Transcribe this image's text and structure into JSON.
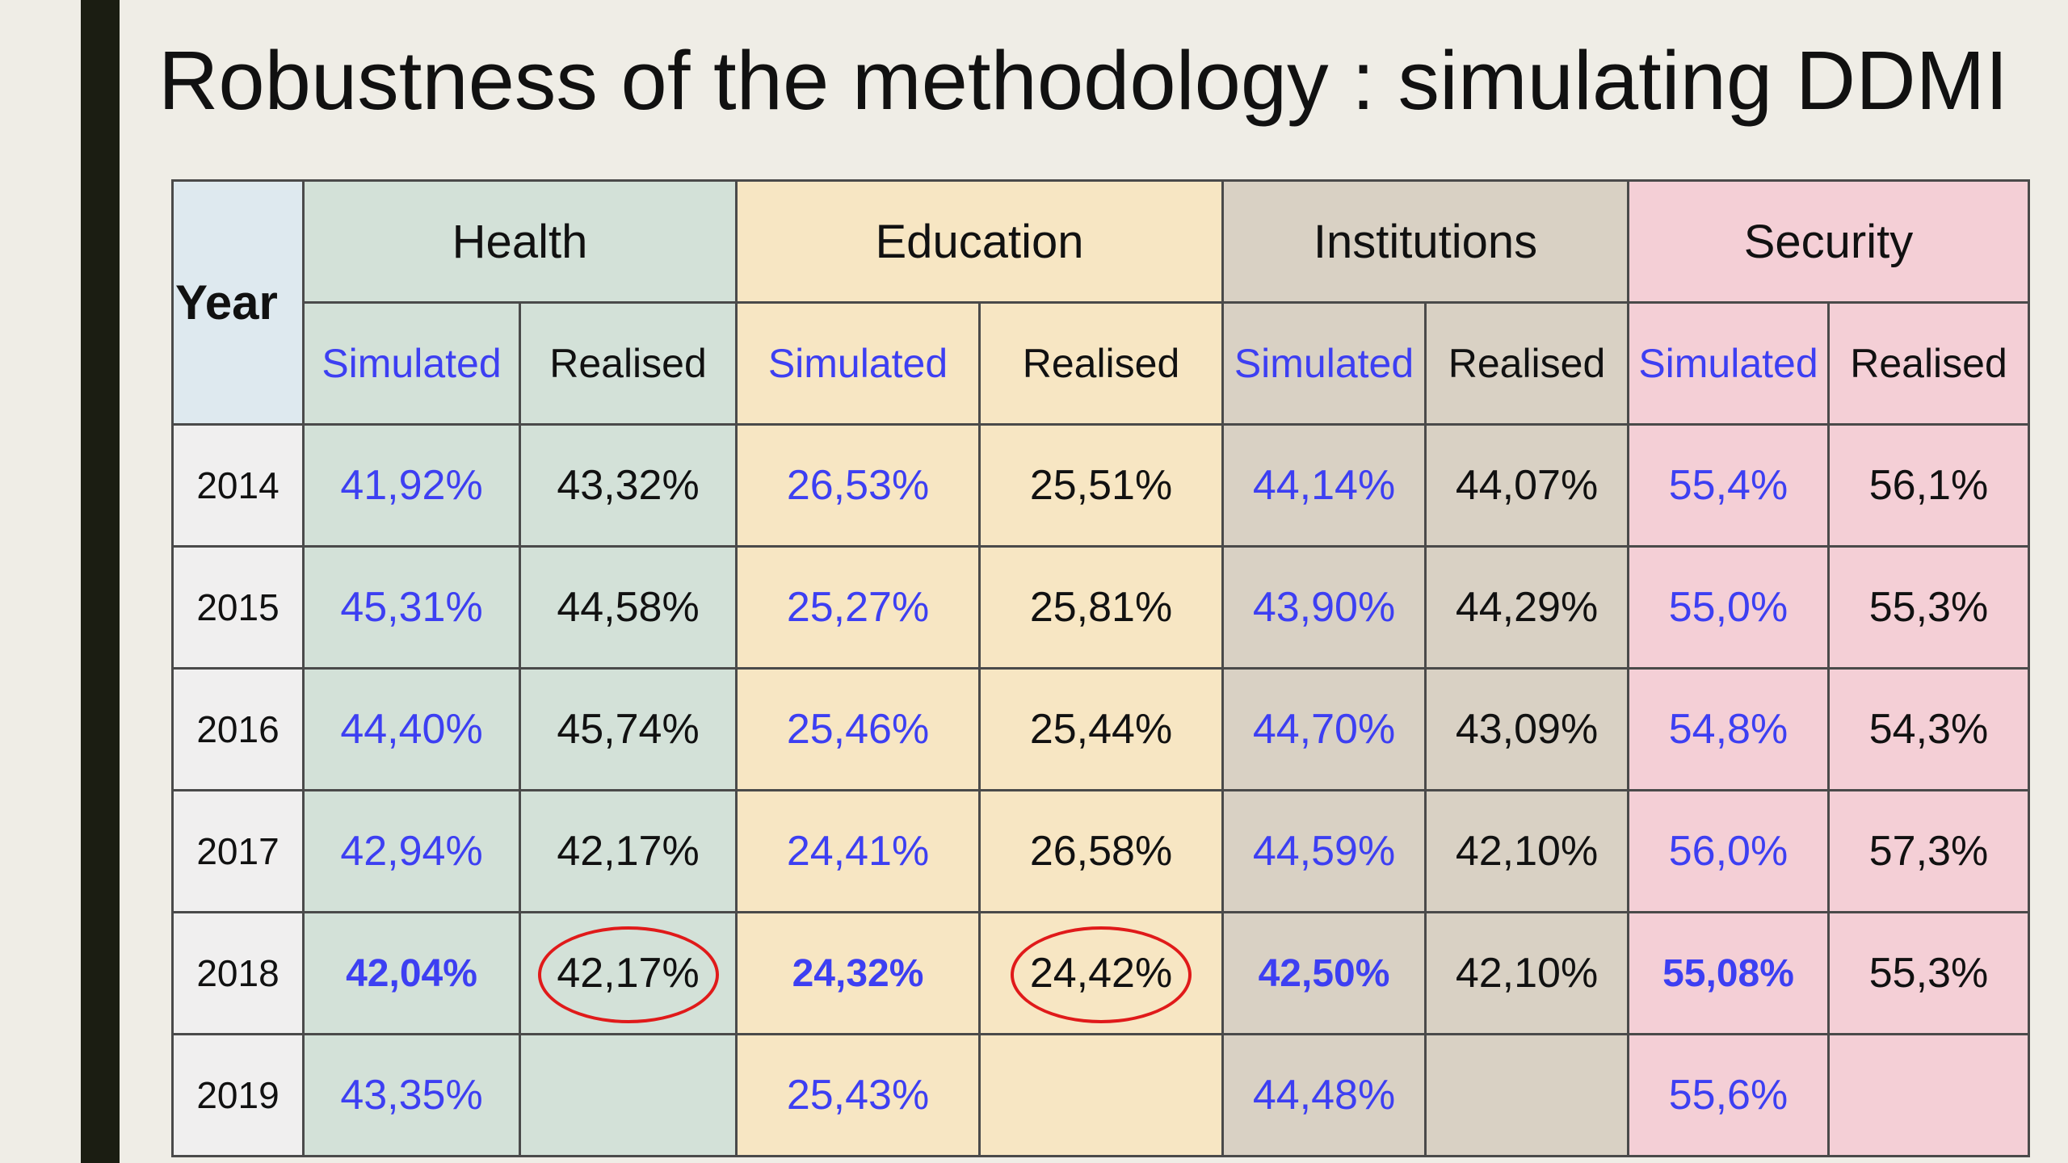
{
  "title": "Robustness of the methodology : simulating DDMI",
  "table": {
    "year_header": "Year",
    "groups": [
      {
        "key": "health",
        "label": "Health"
      },
      {
        "key": "education",
        "label": "Education"
      },
      {
        "key": "institutions",
        "label": "Institutions"
      },
      {
        "key": "security",
        "label": "Security"
      }
    ],
    "sub_headers": {
      "simulated": "Simulated",
      "realised": "Realised"
    },
    "rows": [
      {
        "year": "2014",
        "health": [
          "41,92%",
          "43,32%"
        ],
        "education": [
          "26,53%",
          "25,51%"
        ],
        "institutions": [
          "44,14%",
          "44,07%"
        ],
        "security": [
          "55,4%",
          "56,1%"
        ]
      },
      {
        "year": "2015",
        "health": [
          "45,31%",
          "44,58%"
        ],
        "education": [
          "25,27%",
          "25,81%"
        ],
        "institutions": [
          "43,90%",
          "44,29%"
        ],
        "security": [
          "55,0%",
          "55,3%"
        ]
      },
      {
        "year": "2016",
        "health": [
          "44,40%",
          "45,74%"
        ],
        "education": [
          "25,46%",
          "25,44%"
        ],
        "institutions": [
          "44,70%",
          "43,09%"
        ],
        "security": [
          "54,8%",
          "54,3%"
        ]
      },
      {
        "year": "2017",
        "health": [
          "42,94%",
          "42,17%"
        ],
        "education": [
          "24,41%",
          "26,58%"
        ],
        "institutions": [
          "44,59%",
          "42,10%"
        ],
        "security": [
          "56,0%",
          "57,3%"
        ]
      },
      {
        "year": "2018",
        "health": [
          "42,04%",
          "42,17%"
        ],
        "education": [
          "24,32%",
          "24,42%"
        ],
        "institutions": [
          "42,50%",
          "42,10%"
        ],
        "security": [
          "55,08%",
          "55,3%"
        ]
      },
      {
        "year": "2019",
        "health": [
          "43,35%",
          ""
        ],
        "education": [
          "25,43%",
          ""
        ],
        "institutions": [
          "44,48%",
          ""
        ],
        "security": [
          "55,6%",
          ""
        ]
      }
    ]
  },
  "colors": {
    "simulated_text": "#3d3ff2",
    "realised_text": "#111111",
    "health_bg": "#d3e1d8",
    "education_bg": "#f7e6c3",
    "institutions_bg": "#d9d1c4",
    "security_bg": "#f4cfd6",
    "highlight_circle": "#e01a1a"
  }
}
